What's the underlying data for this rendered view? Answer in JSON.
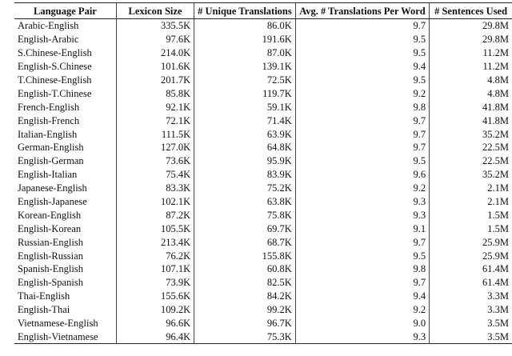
{
  "table": {
    "header": [
      "Language Pair",
      "Lexicon Size",
      "# Unique Translations",
      "Avg. # Translations Per Word",
      "# Sentences Used"
    ],
    "rows": [
      [
        "Arabic-English",
        "335.5K",
        "86.0K",
        "9.7",
        "29.8M"
      ],
      [
        "English-Arabic",
        "97.6K",
        "191.6K",
        "9.5",
        "29.8M"
      ],
      [
        "S.Chinese-English",
        "214.0K",
        "87.0K",
        "9.5",
        "11.2M"
      ],
      [
        "English-S.Chinese",
        "101.6K",
        "139.1K",
        "9.4",
        "11.2M"
      ],
      [
        "T.Chinese-English",
        "201.7K",
        "72.5K",
        "9.5",
        "4.8M"
      ],
      [
        "English-T.Chinese",
        "85.8K",
        "119.7K",
        "9.2",
        "4.8M"
      ],
      [
        "French-English",
        "92.1K",
        "59.1K",
        "9.8",
        "41.8M"
      ],
      [
        "English-French",
        "72.1K",
        "71.4K",
        "9.7",
        "41.8M"
      ],
      [
        "Italian-English",
        "111.5K",
        "63.9K",
        "9.7",
        "35.2M"
      ],
      [
        "German-English",
        "127.0K",
        "64.8K",
        "9.7",
        "22.5M"
      ],
      [
        "English-German",
        "73.6K",
        "95.9K",
        "9.5",
        "22.5M"
      ],
      [
        "English-Italian",
        "75.4K",
        "83.9K",
        "9.6",
        "35.2M"
      ],
      [
        "Japanese-English",
        "83.3K",
        "75.2K",
        "9.2",
        "2.1M"
      ],
      [
        "English-Japanese",
        "102.1K",
        "63.8K",
        "9.3",
        "2.1M"
      ],
      [
        "Korean-English",
        "87.2K",
        "75.8K",
        "9.3",
        "1.5M"
      ],
      [
        "English-Korean",
        "105.5K",
        "69.7K",
        "9.1",
        "1.5M"
      ],
      [
        "Russian-English",
        "213.4K",
        "68.7K",
        "9.7",
        "25.9M"
      ],
      [
        "English-Russian",
        "76.2K",
        "155.8K",
        "9.5",
        "25.9M"
      ],
      [
        "Spanish-English",
        "107.1K",
        "60.8K",
        "9.8",
        "61.4M"
      ],
      [
        "English-Spanish",
        "73.9K",
        "82.5K",
        "9.7",
        "61.4M"
      ],
      [
        "Thai-English",
        "155.6K",
        "84.2K",
        "9.4",
        "3.3M"
      ],
      [
        "English-Thai",
        "109.2K",
        "99.2K",
        "9.2",
        "3.3M"
      ],
      [
        "Vietnamese-English",
        "96.6K",
        "96.7K",
        "9.0",
        "3.5M"
      ],
      [
        "English-Vietnamese",
        "96.4K",
        "75.3K",
        "9.3",
        "3.5M"
      ]
    ]
  }
}
